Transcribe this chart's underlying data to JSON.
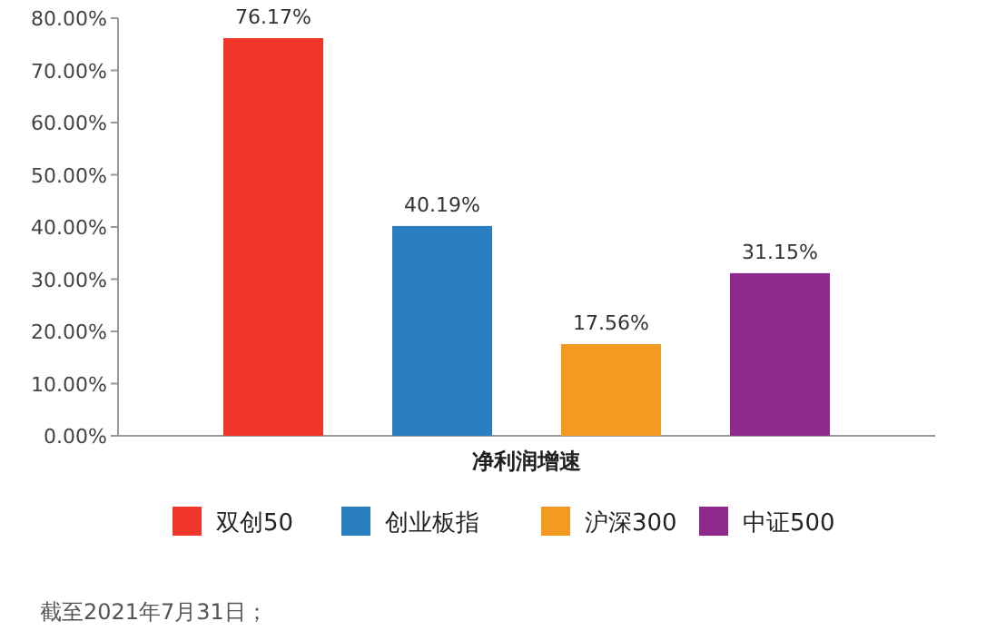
{
  "chart_data": {
    "type": "bar",
    "categories": [
      "净利润增速"
    ],
    "series": [
      {
        "name": "双创50",
        "color": "#f0362a",
        "values": [
          76.17
        ],
        "value_labels": [
          "76.17%"
        ]
      },
      {
        "name": "创业板指",
        "color": "#2a7fc1",
        "values": [
          40.19
        ],
        "value_labels": [
          "40.19%"
        ]
      },
      {
        "name": "沪深300",
        "color": "#f39a21",
        "values": [
          17.56
        ],
        "value_labels": [
          "17.56%"
        ]
      },
      {
        "name": "中证500",
        "color": "#8e2a8c",
        "values": [
          31.15
        ],
        "value_labels": [
          "31.15%"
        ]
      }
    ],
    "ylim": [
      0,
      80
    ],
    "yticks": [
      {
        "value": 0,
        "label": "0.00%"
      },
      {
        "value": 10,
        "label": "10.00%"
      },
      {
        "value": 20,
        "label": "20.00%"
      },
      {
        "value": 30,
        "label": "30.00%"
      },
      {
        "value": 40,
        "label": "40.00%"
      },
      {
        "value": 50,
        "label": "50.00%"
      },
      {
        "value": 60,
        "label": "60.00%"
      },
      {
        "value": 70,
        "label": "70.00%"
      },
      {
        "value": 80,
        "label": "80.00%"
      }
    ],
    "legend": "bottom",
    "annotations": [
      "截至2021年7月31日；"
    ]
  }
}
